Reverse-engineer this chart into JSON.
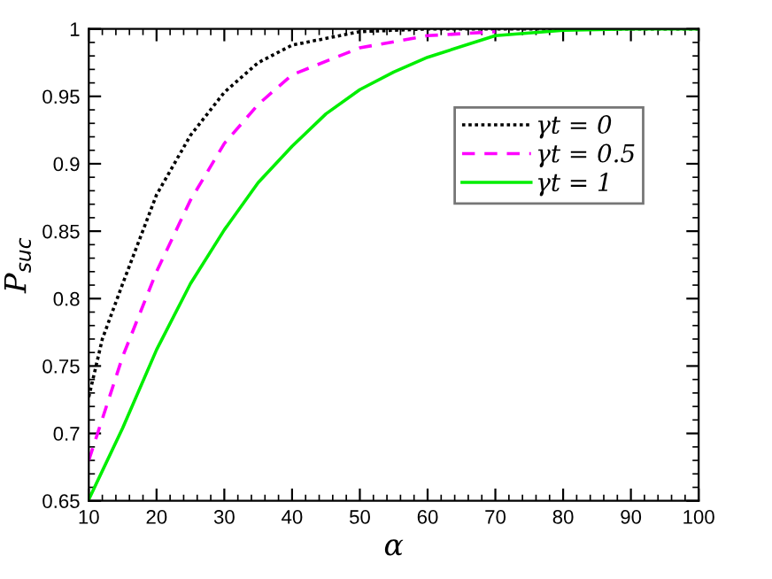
{
  "chart_data": {
    "type": "line",
    "xlabel": "α",
    "ylabel": "P$_{suc}$",
    "xlim": [
      10,
      100
    ],
    "xticks": [
      10,
      20,
      30,
      40,
      50,
      60,
      70,
      80,
      90,
      100
    ],
    "ylim": [
      0.65,
      1
    ],
    "yticks": [
      0.65,
      0.7,
      0.75,
      0.8,
      0.85,
      0.9,
      0.95,
      1
    ],
    "grid": false,
    "legend": "top right",
    "marker": "none",
    "series": [
      {
        "name": "γt = 0",
        "color": "#000000",
        "line_style": "dotted",
        "x": [
          10,
          12,
          15,
          20,
          25,
          30,
          35,
          40,
          50,
          60,
          70,
          80,
          90,
          100
        ],
        "values": [
          0.727,
          0.77,
          0.811,
          0.877,
          0.921,
          0.953,
          0.975,
          0.988,
          0.998,
          1,
          1,
          1,
          1,
          1
        ]
      },
      {
        "name": "γt = 0.5",
        "color": "#ff00ff",
        "line_style": "dashed",
        "x": [
          10,
          15,
          20,
          25,
          30,
          35,
          40,
          50,
          60,
          70
        ],
        "values": [
          0.68,
          0.757,
          0.82,
          0.873,
          0.915,
          0.944,
          0.966,
          0.986,
          0.995,
          0.998
        ]
      },
      {
        "name": "γt = 1",
        "color": "#00ee00",
        "line_style": "solid",
        "x": [
          10,
          15,
          20,
          25,
          30,
          35,
          40,
          45,
          50,
          55,
          60,
          70,
          80,
          90,
          100
        ],
        "values": [
          0.651,
          0.704,
          0.762,
          0.811,
          0.851,
          0.886,
          0.913,
          0.937,
          0.955,
          0.968,
          0.979,
          0.995,
          0.999,
          1,
          1
        ]
      }
    ]
  }
}
